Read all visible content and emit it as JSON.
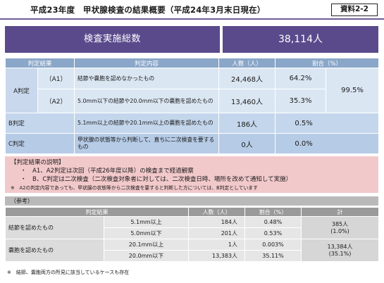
{
  "header": {
    "title": "平成23年度　甲状腺検査の結果概要（平成24年3月末日現在）",
    "badge": "資料2-2"
  },
  "summary": {
    "label": "検査実施総数",
    "value": "38,114人"
  },
  "main_table": {
    "headers": [
      "判定結果",
      "判定内容",
      "人数（人）",
      "割合（%）"
    ],
    "a_grade": {
      "label": "A判定",
      "total_pct": "99.5%",
      "rows": [
        {
          "sub": "（A1）",
          "content": "結節や嚢胞を認めなかったもの",
          "count": "24,468人",
          "pct": "64.2%"
        },
        {
          "sub": "（A2）",
          "content": "5.0mm以下の結節や20.0mm以下の嚢胞を認めたもの",
          "count": "13,460人",
          "pct": "35.3%"
        }
      ]
    },
    "b_grade": {
      "label": "B判定",
      "content": "5.1mm以上の結節や20.1mm以上の嚢胞を認めたもの",
      "count": "186人",
      "pct": "0.5%"
    },
    "c_grade": {
      "label": "C判定",
      "content": "甲状腺の状態等から判断して、直ちに二次検査を要するもの",
      "count": "0人",
      "pct": "0.0%"
    }
  },
  "explanation": {
    "heading": "【判定結果の説明】",
    "lines": [
      "・　A1、A2判定は次回（平成26年度以降）の検査まで経過観察",
      "・　B、C判定は二次検査（二次検査対象者に対しては、二次検査日時、場所を改めて通知して実施）"
    ],
    "note": "※　A2の判定内容であっても、甲状腺の状態等から二次検査を要すると判断した方については、B判定としています"
  },
  "reference": {
    "label": "（参考）",
    "headers": [
      "判定結果",
      "人数（人）",
      "割合（%）",
      "計"
    ],
    "groups": [
      {
        "label": "結節を認めたもの",
        "total": "385人",
        "total_pct": "(1.0%)",
        "rows": [
          {
            "size": "5.1mm以上",
            "count": "184人",
            "pct": "0.48%"
          },
          {
            "size": "5.0mm以下",
            "count": "201人",
            "pct": "0.53%"
          }
        ]
      },
      {
        "label": "嚢胞を認めたもの",
        "total": "13,384人",
        "total_pct": "(35.1%)",
        "rows": [
          {
            "size": "20.1mm以上",
            "count": "1人",
            "pct": "0.003%"
          },
          {
            "size": "20.0mm以下",
            "count": "13,383人",
            "pct": "35.11%"
          }
        ]
      }
    ]
  },
  "footnote": "※　結節、嚢胞両方の所見に該当しているケースも存在",
  "colors": {
    "accent_purple": "#5a4a8c",
    "header_blue": "#8aa6c8",
    "explain_pink": "#f2c9cb"
  }
}
